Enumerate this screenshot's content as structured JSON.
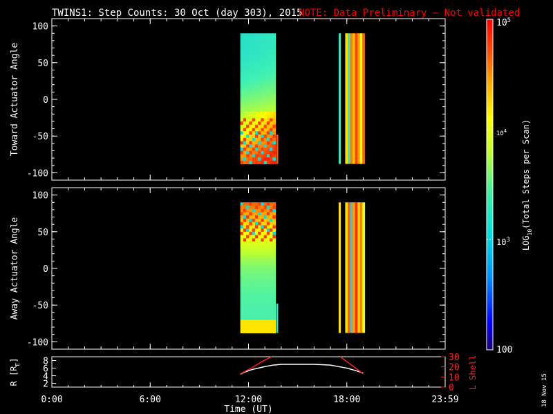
{
  "title": {
    "main": "TWINS1: Step Counts: 30 Oct (day 303), 2015",
    "note": "NOTE: Data Preliminary – Not validated"
  },
  "datestamp": "18 Nov 15",
  "colors": {
    "background": "#000000",
    "axes": "#ffffff",
    "note": "#ff0000",
    "l_shell": "#ff2020",
    "r_line": "#ffffff"
  },
  "chart_data": [
    {
      "type": "heatmap",
      "ylabel": "Toward Actuator Angle",
      "ylim": [
        -110,
        110
      ],
      "yticks": [
        100,
        50,
        0,
        -50,
        -100
      ],
      "xlim": [
        0,
        24
      ],
      "xticks": [
        "0:00",
        "6:00",
        "12:00",
        "18:00",
        "23:59"
      ],
      "angle_range": [
        -88,
        90
      ],
      "blocks": [
        {
          "t_start": 11.5,
          "t_end": 13.65,
          "type": "sweep"
        },
        {
          "t_start": 13.7,
          "t_end": 13.8,
          "type": "stripe",
          "colors": [
            "#ff6010"
          ],
          "angle_range": [
            -88,
            -48
          ]
        },
        {
          "t_start": 17.5,
          "t_end": 17.62,
          "type": "stripe",
          "colors": [
            "#40e0c0"
          ]
        },
        {
          "t_start": 17.9,
          "t_end": 19.1,
          "type": "stripes",
          "colors": [
            "#ffe000",
            "#40e0c0",
            "#ff8000",
            "#ffc000",
            "#ff4000",
            "#ffa000",
            "#e0ff20",
            "#ff6000"
          ]
        }
      ]
    },
    {
      "type": "heatmap",
      "ylabel": "Away Actuator Angle",
      "ylim": [
        -110,
        110
      ],
      "yticks": [
        100,
        50,
        0,
        -50,
        -100
      ],
      "xlim": [
        0,
        24
      ],
      "xticks": [
        "0:00",
        "6:00",
        "12:00",
        "18:00",
        "23:59"
      ],
      "angle_range": [
        -88,
        90
      ],
      "blocks": [
        {
          "t_start": 11.5,
          "t_end": 13.65,
          "type": "sweep"
        },
        {
          "t_start": 13.7,
          "t_end": 13.8,
          "type": "stripe",
          "colors": [
            "#40e0c0"
          ],
          "angle_range": [
            -88,
            -48
          ]
        },
        {
          "t_start": 17.5,
          "t_end": 17.62,
          "type": "stripe",
          "colors": [
            "#ffe000"
          ]
        },
        {
          "t_start": 17.9,
          "t_end": 19.1,
          "type": "stripes",
          "colors": [
            "#ffe000",
            "#ff6000",
            "#40c0e0",
            "#ffa000",
            "#ff3000",
            "#ffd000",
            "#ff8000",
            "#e0ff20"
          ]
        }
      ]
    },
    {
      "type": "line",
      "ylabel_left": "R [R",
      "ylabel_left_sub": "E",
      "ylabel_left_end": "]",
      "ylabel_right": "L Shell",
      "xlabel": "Time (UT)",
      "xlim": [
        0,
        24
      ],
      "xticks": [
        "0:00",
        "6:00",
        "12:00",
        "18:00",
        "23:59"
      ],
      "ylim_left": [
        1,
        9
      ],
      "yticks_left": [
        2,
        4,
        6,
        8
      ],
      "ylim_right": [
        0,
        30
      ],
      "yticks_right": [
        0,
        10,
        20,
        30
      ],
      "series": [
        {
          "axis": "left",
          "x": [
            11.5,
            11.8,
            12.2,
            12.6,
            13.0,
            13.5,
            14.0,
            15.0,
            16.0,
            17.0,
            17.5,
            18.0,
            18.5,
            19.0
          ],
          "y": [
            4.4,
            5.0,
            5.6,
            6.0,
            6.4,
            6.8,
            7.0,
            7.0,
            7.0,
            6.8,
            6.4,
            6.0,
            5.4,
            4.7
          ]
        },
        {
          "axis": "right",
          "segments": [
            {
              "x": [
                11.5,
                12.2,
                12.8,
                13.4
              ],
              "y": [
                13,
                19,
                25,
                30
              ]
            },
            {
              "x": [
                17.6,
                18.1,
                18.6,
                19.0
              ],
              "y": [
                30,
                24,
                18,
                13
              ]
            }
          ]
        }
      ]
    }
  ],
  "colorbar": {
    "label": "LOG",
    "label_sub": "10",
    "label_rest": "(Total Steps per Scan)",
    "range": [
      100,
      100000
    ],
    "tick_bottom": "100",
    "tick_1e3_base": "10",
    "tick_1e3_exp": "3",
    "tick_1e4_base": "10",
    "tick_1e4_exp": "4",
    "tick_1e5_base": "10",
    "tick_1e5_exp": "5"
  }
}
